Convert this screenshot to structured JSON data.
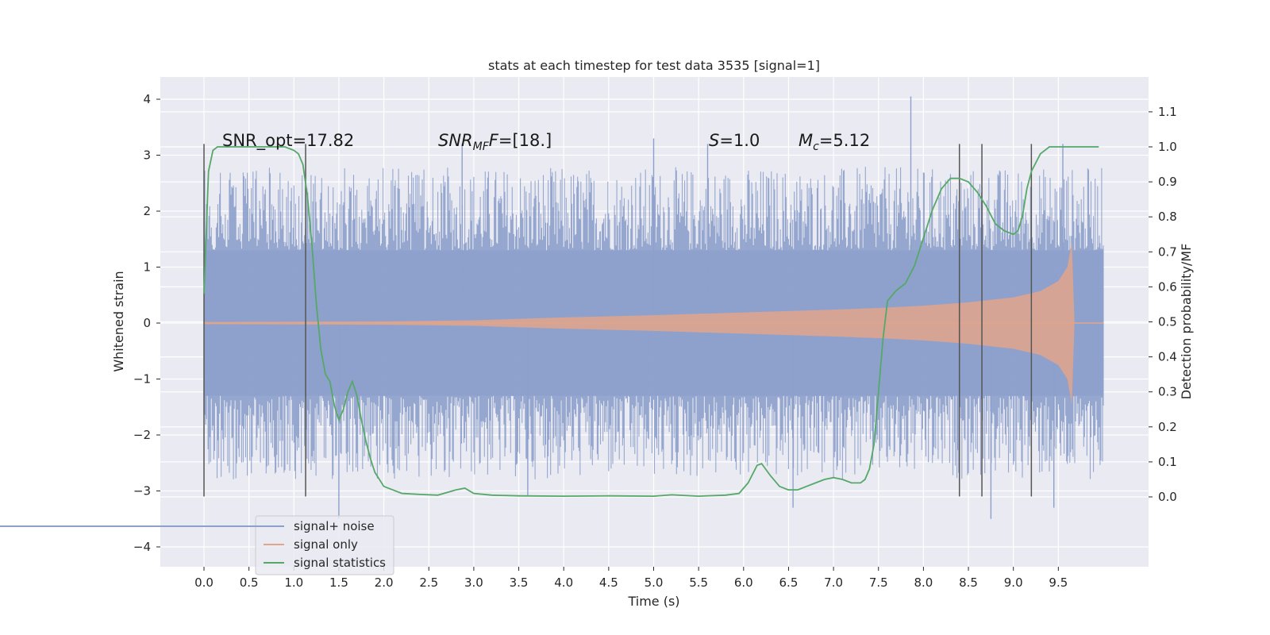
{
  "chart_data": {
    "type": "line",
    "title": "stats at each timestep for test data 3535 [signal=1]",
    "xlabel": "Time (s)",
    "ylabel": "Whitened strain",
    "y2label": "Detection probability/MF",
    "xlim": [
      -0.5,
      10.5
    ],
    "ylim": [
      -4.4,
      4.4
    ],
    "y2lim": [
      -0.16,
      1.2
    ],
    "xticks": [
      "0.0",
      "0.5",
      "1.0",
      "1.5",
      "2.0",
      "2.5",
      "3.0",
      "3.5",
      "4.0",
      "4.5",
      "5.0",
      "5.5",
      "6.0",
      "6.5",
      "7.0",
      "7.5",
      "8.0",
      "8.5",
      "9.0",
      "9.5"
    ],
    "yticks": [
      "4",
      "3",
      "2",
      "1",
      "0",
      "−1",
      "−2",
      "−3",
      "−4"
    ],
    "y2ticks": [
      "1.1",
      "1.0",
      "0.9",
      "0.8",
      "0.7",
      "0.6",
      "0.5",
      "0.4",
      "0.3",
      "0.2",
      "0.1",
      "0.0"
    ],
    "grid": true,
    "legend_position": "lower-left",
    "legend": [
      {
        "label": "signal+ noise",
        "color": "#8da0cb"
      },
      {
        "label": "signal only",
        "color": "#e2a58b"
      },
      {
        "label": "signal statistics",
        "color": "#55a868"
      }
    ],
    "annotations": {
      "snr_opt": "SNR_opt=17.82",
      "snr_mf_base": "SNR",
      "snr_mf_sub": "MF",
      "snr_mf_rest": "=[18.]",
      "s_sym": "S",
      "s_rest": "=1.0",
      "mc_base": "M",
      "mc_sub": "c",
      "mc_rest": "=5.12"
    },
    "vertical_lines_x": [
      0.0,
      1.13,
      8.4,
      8.65,
      9.2
    ],
    "vertical_lines_yrange": [
      -3.1,
      3.2
    ],
    "series": [
      {
        "name": "signal+ noise",
        "color": "#8da0cb",
        "x_range": [
          0.0,
          10.0
        ],
        "band_core": 1.3,
        "band_typical": 2.6,
        "extremes": [
          [
            1.5,
            -3.5
          ],
          [
            2.87,
            3.2
          ],
          [
            3.6,
            -3.1
          ],
          [
            5.0,
            3.3
          ],
          [
            5.6,
            3.2
          ],
          [
            6.55,
            -3.3
          ],
          [
            7.86,
            4.05
          ],
          [
            8.75,
            -3.5
          ],
          [
            9.45,
            -3.3
          ],
          [
            9.55,
            3.2
          ]
        ]
      },
      {
        "name": "signal only",
        "color": "#e2a58b",
        "x": [
          0.0,
          2.0,
          3.0,
          4.0,
          5.0,
          6.0,
          7.0,
          7.5,
          8.0,
          8.5,
          9.0,
          9.3,
          9.5,
          9.6,
          9.65,
          9.68,
          10.0
        ],
        "amplitude": [
          0.02,
          0.03,
          0.05,
          0.1,
          0.14,
          0.19,
          0.24,
          0.27,
          0.31,
          0.37,
          0.46,
          0.57,
          0.75,
          1.0,
          1.45,
          0.0,
          0.0
        ]
      },
      {
        "name": "signal statistics",
        "color": "#55a868",
        "x": [
          0.0,
          0.05,
          0.1,
          0.15,
          0.2,
          0.3,
          0.4,
          0.5,
          0.6,
          0.7,
          0.8,
          0.9,
          1.0,
          1.05,
          1.1,
          1.15,
          1.2,
          1.25,
          1.3,
          1.35,
          1.4,
          1.45,
          1.5,
          1.55,
          1.6,
          1.65,
          1.7,
          1.75,
          1.8,
          1.85,
          1.9,
          2.0,
          2.1,
          2.2,
          2.4,
          2.6,
          2.8,
          2.9,
          3.0,
          3.2,
          3.5,
          4.0,
          4.5,
          5.0,
          5.2,
          5.5,
          5.8,
          5.95,
          6.05,
          6.15,
          6.2,
          6.3,
          6.4,
          6.5,
          6.6,
          6.8,
          6.9,
          7.0,
          7.1,
          7.2,
          7.3,
          7.35,
          7.4,
          7.45,
          7.5,
          7.55,
          7.6,
          7.7,
          7.8,
          7.9,
          8.0,
          8.1,
          8.2,
          8.3,
          8.4,
          8.5,
          8.6,
          8.7,
          8.8,
          8.9,
          9.0,
          9.05,
          9.1,
          9.15,
          9.2,
          9.3,
          9.4,
          9.5,
          9.6,
          9.7,
          9.8,
          9.9,
          9.95
        ],
        "y": [
          0.58,
          0.93,
          0.99,
          1.0,
          1.0,
          1.0,
          1.0,
          1.0,
          1.0,
          1.0,
          1.0,
          1.0,
          0.99,
          0.98,
          0.95,
          0.86,
          0.72,
          0.55,
          0.42,
          0.35,
          0.33,
          0.26,
          0.22,
          0.25,
          0.3,
          0.33,
          0.29,
          0.22,
          0.16,
          0.11,
          0.07,
          0.03,
          0.02,
          0.01,
          0.007,
          0.005,
          0.02,
          0.025,
          0.01,
          0.005,
          0.003,
          0.002,
          0.003,
          0.002,
          0.006,
          0.002,
          0.005,
          0.01,
          0.04,
          0.09,
          0.095,
          0.06,
          0.03,
          0.02,
          0.02,
          0.04,
          0.05,
          0.055,
          0.05,
          0.04,
          0.04,
          0.05,
          0.08,
          0.15,
          0.3,
          0.45,
          0.56,
          0.59,
          0.61,
          0.66,
          0.74,
          0.82,
          0.88,
          0.91,
          0.91,
          0.9,
          0.87,
          0.83,
          0.78,
          0.76,
          0.75,
          0.76,
          0.8,
          0.88,
          0.93,
          0.98,
          1.0,
          1.0,
          1.0,
          1.0,
          1.0,
          1.0,
          1.0
        ]
      }
    ]
  }
}
